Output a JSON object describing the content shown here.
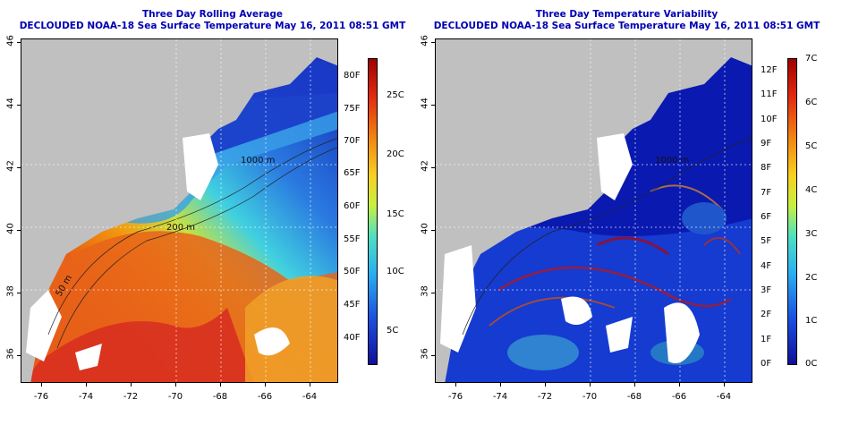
{
  "left": {
    "title": "Three Day Rolling Average",
    "subtitle": "DECLOUDED NOAA-18 Sea Surface Temperature May 16, 2011 08:51 GMT",
    "contour_labels": [
      "1000 m",
      "200 m",
      "50 m"
    ],
    "colorbar_f": [
      "80F",
      "75F",
      "70F",
      "65F",
      "60F",
      "55F",
      "50F",
      "45F",
      "40F"
    ],
    "colorbar_c": [
      "25C",
      "20C",
      "15C",
      "10C",
      "5C"
    ]
  },
  "right": {
    "title": "Three Day Temperature Variability",
    "subtitle": "DECLOUDED NOAA-18 Sea Surface Temperature May 16, 2011 08:51 GMT",
    "contour_labels": [
      "1000 m"
    ],
    "colorbar_f": [
      "12F",
      "11F",
      "10F",
      "9F",
      "8F",
      "7F",
      "6F",
      "5F",
      "4F",
      "3F",
      "2F",
      "1F",
      "0F"
    ],
    "colorbar_c": [
      "7C",
      "6C",
      "5C",
      "4C",
      "3C",
      "2C",
      "1C",
      "0C"
    ]
  },
  "x_ticks": [
    "-76",
    "-74",
    "-72",
    "-70",
    "-68",
    "-66",
    "-64"
  ],
  "y_ticks": [
    "46",
    "44",
    "42",
    "40",
    "38",
    "36"
  ],
  "colors": {
    "title": "#0000b4",
    "land": "#c0c0c0",
    "cloud": "#ffffff"
  }
}
